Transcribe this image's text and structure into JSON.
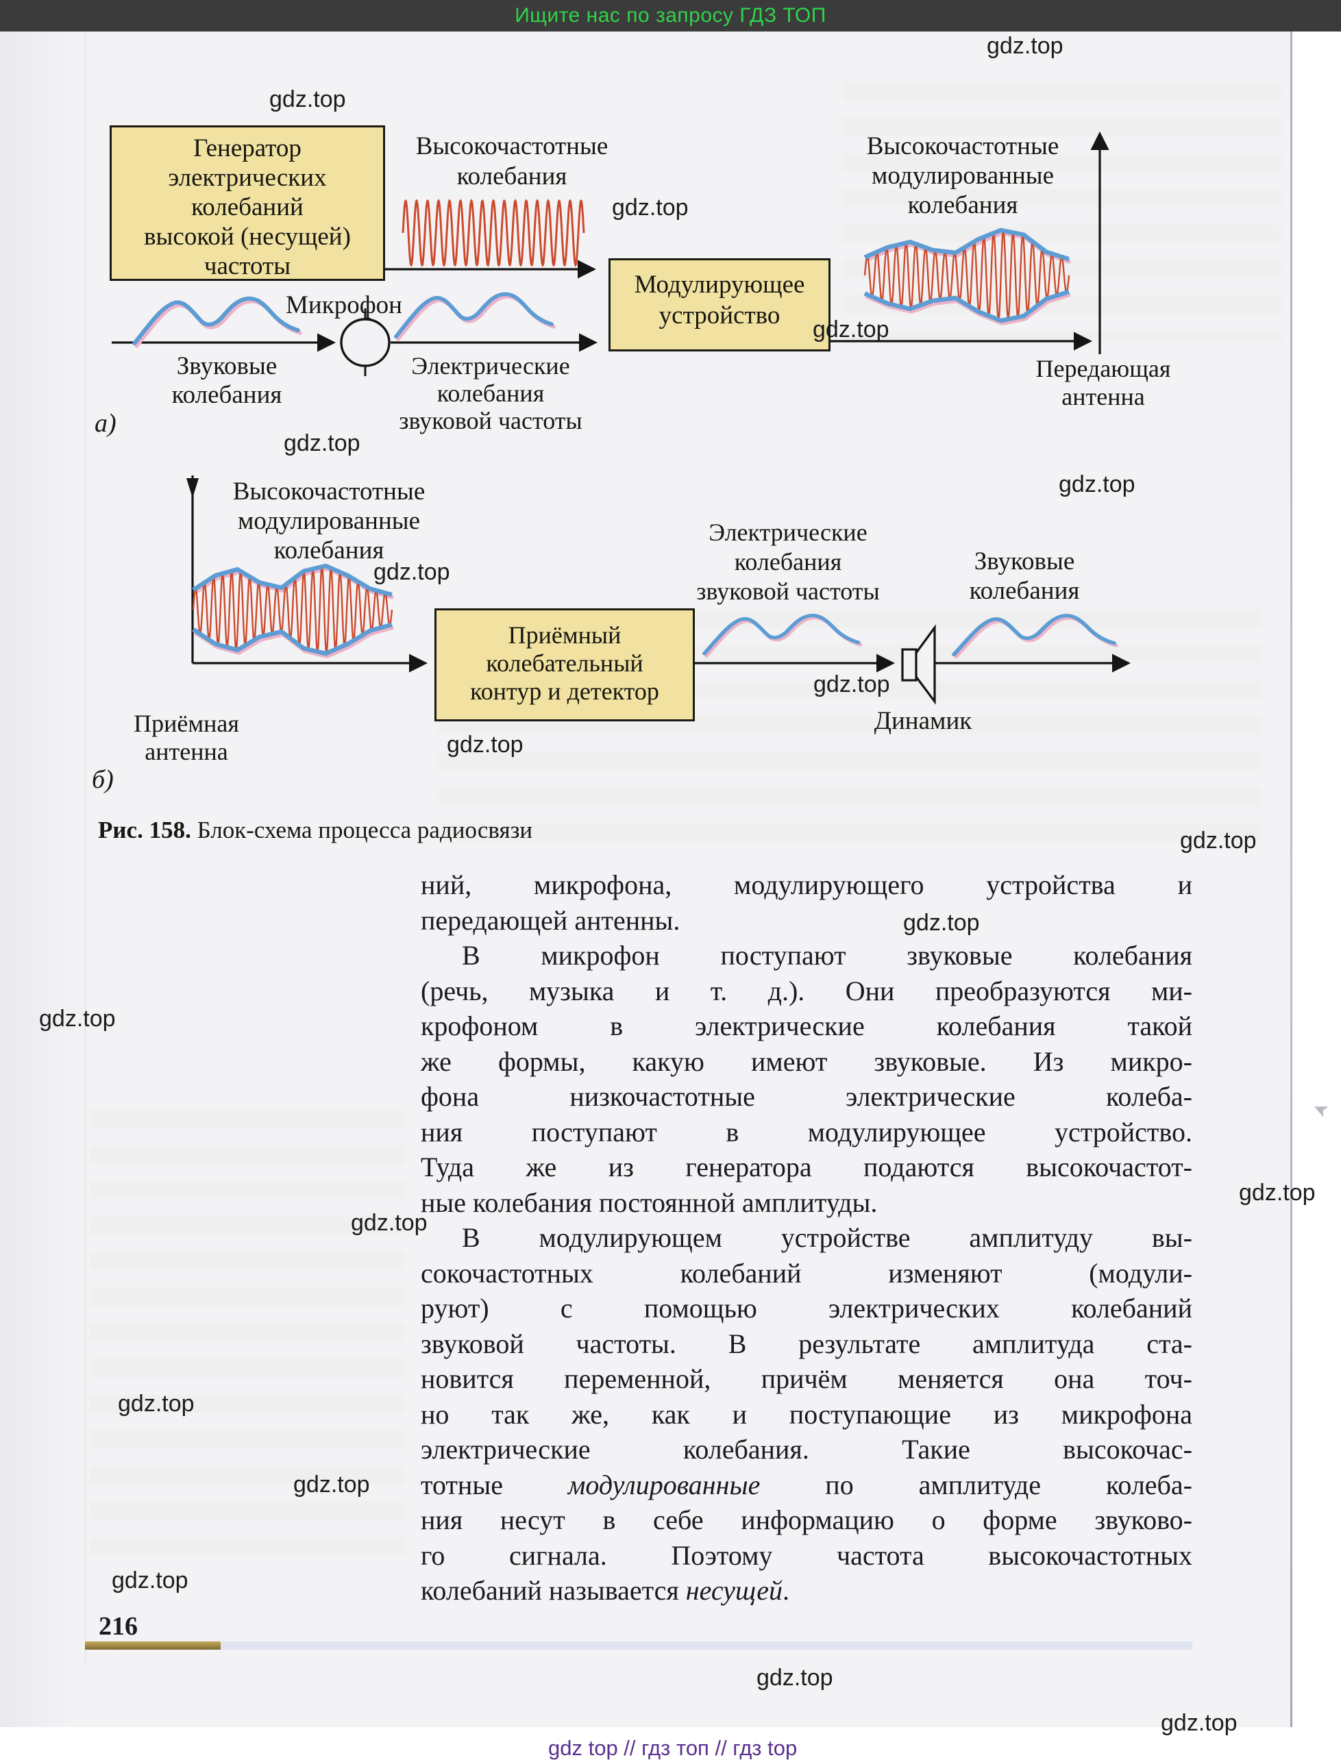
{
  "top_banner": {
    "text": "Ищите нас по запросу ГДЗ ТОП"
  },
  "watermark": {
    "label": "gdz.top"
  },
  "footer": {
    "links": "gdz top  //  гдз топ  //  гдз top"
  },
  "page_number": "216",
  "figure": {
    "caption_bold": "Рис. 158.",
    "caption_rest": " Блок-схема процесса радиосвязи",
    "part_a_label": "а)",
    "part_b_label": "б)",
    "generator_box": [
      "Генератор",
      "электрических",
      "колебаний",
      "высокой (несущей)",
      "частоты"
    ],
    "hf_label": [
      "Высокочастотные",
      "колебания"
    ],
    "hf_mod_label_a": [
      "Высокочастотные",
      "модулированные",
      "колебания"
    ],
    "modulator_box": [
      "Модулирующее",
      "устройство"
    ],
    "mic_label": "Микрофон",
    "sound_label_a": [
      "Звуковые",
      "колебания"
    ],
    "electric_label_a": [
      "Электрические",
      "колебания",
      "звуковой частоты"
    ],
    "tx_antenna_label": [
      "Передающая",
      "антенна"
    ],
    "hf_mod_label_b": [
      "Высокочастотные",
      "модулированные",
      "колебания"
    ],
    "receiver_box": [
      "Приёмный",
      "колебательный",
      "контур и детектор"
    ],
    "electric_label_b": [
      "Электрические",
      "колебания",
      "звуковой частоты"
    ],
    "sound_label_b": [
      "Звуковые",
      "колебания"
    ],
    "rx_antenna_label": [
      "Приёмная",
      "антенна"
    ],
    "speaker_label": "Динамик"
  },
  "body": {
    "l1": "ний, микрофона, модулирующего устройства и",
    "l2": "передающей антенны.",
    "l3": "В микрофон поступают звуковые колебания",
    "l4": "(речь, музыка и т. д.). Они преобразуются ми-",
    "l5": "крофоном в электрические колебания такой",
    "l6": "же формы, какую имеют звуковые. Из микро-",
    "l7": "фона низкочастотные электрические колеба-",
    "l8": "ния поступают в модулирующее устройство.",
    "l9": "Туда же из генератора подаются высокочастот-",
    "l10": "ные колебания постоянной амплитуды.",
    "l11": "В модулирующем устройстве амплитуду вы-",
    "l12": "сокочастотных колебаний изменяют (модули-",
    "l13": "руют) с помощью электрических колебаний",
    "l14": "звуковой частоты. В результате амплитуда ста-",
    "l15": "новится переменной, причём меняется она точ-",
    "l16": "но так же, как и поступающие из микрофона",
    "l17": "электрические колебания. Такие высокочас-",
    "l18a": "тотные ",
    "l18b": "модулированные",
    "l18c": " по амплитуде колеба-",
    "l19": "ния несут в себе информацию о форме звуково-",
    "l20": "го сигнала. Поэтому частота высокочастотных",
    "l21a": "колебаний называется ",
    "l21b": "несущей",
    "l21c": "."
  },
  "colors": {
    "banner_bg": "#3b3b3b",
    "banner_green": "#31d24b",
    "page_bg": "#f3f3f5",
    "box_yellow": "#f1e2a2",
    "wave_red": "#cc4a2c",
    "wave_blue": "#5e9cd4",
    "wave_pink_shadow": "#ecb3c8",
    "footer_purple": "#5b2f91",
    "rule_gold": "#9d8440",
    "ink": "#1b1b1e"
  }
}
